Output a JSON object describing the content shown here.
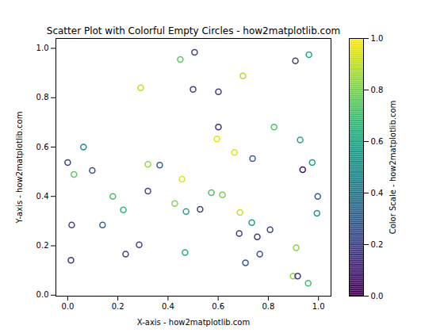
{
  "chart_data": {
    "type": "scatter",
    "title": "Scatter Plot with Colorful Empty Circles - how2matplotlib.com",
    "xlabel": "X-axis - how2matplotlib.com",
    "ylabel": "Y-axis - how2matplotlib.com",
    "marker": "circle",
    "color": "viridis",
    "x": [
      0.0,
      0.025,
      0.063,
      0.098,
      0.016,
      0.013,
      0.139,
      0.18,
      0.222,
      0.231,
      0.285,
      0.291,
      0.32,
      0.32,
      0.367,
      0.427,
      0.449,
      0.456,
      0.472,
      0.468,
      0.5,
      0.506,
      0.528,
      0.573,
      0.595,
      0.601,
      0.601,
      0.617,
      0.665,
      0.684,
      0.687,
      0.699,
      0.709,
      0.734,
      0.737,
      0.756,
      0.766,
      0.807,
      0.823,
      0.908,
      0.899,
      0.917,
      0.911,
      0.927,
      0.937,
      0.959,
      0.962,
      0.975,
      0.997,
      0.994
    ],
    "y": [
      0.537,
      0.489,
      0.6,
      0.505,
      0.284,
      0.141,
      0.284,
      0.4,
      0.345,
      0.166,
      0.204,
      0.84,
      0.53,
      0.422,
      0.527,
      0.371,
      0.955,
      0.47,
      0.339,
      0.173,
      0.834,
      0.984,
      0.348,
      0.415,
      0.633,
      0.824,
      0.681,
      0.406,
      0.578,
      0.25,
      0.335,
      0.888,
      0.131,
      0.294,
      0.553,
      0.236,
      0.166,
      0.265,
      0.681,
      0.949,
      0.077,
      0.077,
      0.192,
      0.629,
      0.508,
      0.048,
      0.974,
      0.537,
      0.4,
      0.332
    ],
    "color_values": [
      0.2,
      0.75,
      0.45,
      0.25,
      0.2,
      0.15,
      0.3,
      0.7,
      0.65,
      0.2,
      0.2,
      0.9,
      0.85,
      0.2,
      0.3,
      0.82,
      0.75,
      0.95,
      0.6,
      0.62,
      0.2,
      0.2,
      0.2,
      0.72,
      0.95,
      0.18,
      0.12,
      0.8,
      0.95,
      0.2,
      0.92,
      0.88,
      0.25,
      0.55,
      0.3,
      0.15,
      0.25,
      0.22,
      0.72,
      0.2,
      0.82,
      0.15,
      0.82,
      0.6,
      0.05,
      0.7,
      0.6,
      0.55,
      0.3,
      0.5
    ],
    "xlim": [
      -0.047,
      1.05
    ],
    "ylim": [
      -0.004,
      1.04
    ],
    "xticks": [
      {
        "value": 0.0,
        "label": "0.0"
      },
      {
        "value": 0.2,
        "label": "0.2"
      },
      {
        "value": 0.4,
        "label": "0.4"
      },
      {
        "value": 0.6,
        "label": "0.6"
      },
      {
        "value": 0.8,
        "label": "0.8"
      },
      {
        "value": 1.0,
        "label": "1.0"
      }
    ],
    "yticks": [
      {
        "value": 0.0,
        "label": "0.0"
      },
      {
        "value": 0.2,
        "label": "0.2"
      },
      {
        "value": 0.4,
        "label": "0.4"
      },
      {
        "value": 0.6,
        "label": "0.6"
      },
      {
        "value": 0.8,
        "label": "0.8"
      },
      {
        "value": 1.0,
        "label": "1.0"
      }
    ],
    "colorbar": {
      "label": "Color Scale - how2matplotlib.com",
      "lim": [
        0,
        1
      ],
      "ticks": [
        {
          "value": 0.0,
          "label": "0.0"
        },
        {
          "value": 0.2,
          "label": "0.2"
        },
        {
          "value": 0.4,
          "label": "0.4"
        },
        {
          "value": 0.6,
          "label": "0.6"
        },
        {
          "value": 0.8,
          "label": "0.8"
        },
        {
          "value": 1.0,
          "label": "1.0"
        }
      ]
    }
  }
}
